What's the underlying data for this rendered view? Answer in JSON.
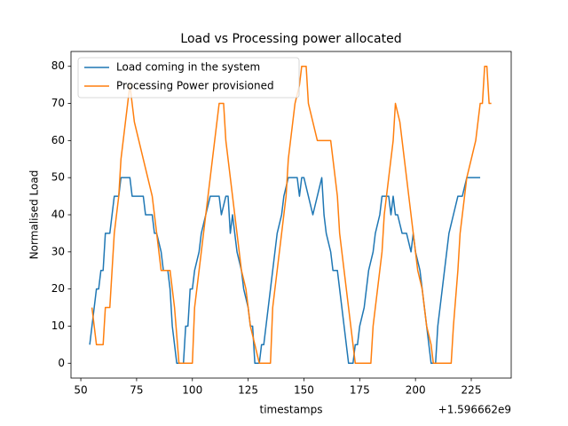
{
  "chart_data": {
    "type": "line",
    "title": "Load vs Processing power allocated",
    "x_label": "timestamps",
    "y_label": "Normalised Load",
    "x_offset_label": "+1.596662e9",
    "xlim": [
      45.6,
      242.9
    ],
    "ylim": [
      -4,
      84
    ],
    "xticks": [
      50,
      75,
      100,
      125,
      150,
      175,
      200,
      225
    ],
    "yticks": [
      0,
      10,
      20,
      30,
      40,
      50,
      60,
      70,
      80
    ],
    "legend": "upper left",
    "series": [
      {
        "name": "Load coming in the system",
        "color": "#1f77b4",
        "x": [
          54,
          56,
          57,
          58,
          59,
          60,
          61,
          63,
          64,
          65,
          67,
          68,
          72,
          73,
          78,
          79,
          82,
          83,
          84,
          86,
          87,
          89,
          90,
          91,
          92,
          93,
          96,
          97,
          98,
          99,
          100,
          101,
          103,
          104,
          106,
          108,
          112,
          113,
          115,
          116,
          117,
          118,
          119,
          120,
          122,
          123,
          125,
          126,
          127,
          128,
          130,
          131,
          132,
          133,
          135,
          137,
          138,
          140,
          141,
          143,
          147,
          148,
          149,
          150,
          152,
          154,
          156,
          158,
          159,
          160,
          162,
          163,
          165,
          166,
          167,
          168,
          169,
          170,
          172,
          173,
          174,
          175,
          177,
          178,
          179,
          181,
          182,
          184,
          185,
          188,
          189,
          190,
          191,
          192,
          194,
          196,
          198,
          199,
          200,
          202,
          203,
          205,
          207,
          209,
          210,
          211,
          213,
          215,
          217,
          219,
          221,
          223,
          229
        ],
        "values": [
          5,
          15,
          20,
          20,
          25,
          25,
          35,
          35,
          40,
          45,
          45,
          50,
          50,
          45,
          45,
          40,
          40,
          35,
          35,
          30,
          25,
          25,
          20,
          10,
          5,
          0,
          0,
          10,
          10,
          20,
          20,
          25,
          30,
          35,
          40,
          45,
          45,
          40,
          45,
          45,
          35,
          40,
          35,
          30,
          25,
          20,
          15,
          10,
          10,
          0,
          0,
          5,
          5,
          10,
          20,
          30,
          35,
          40,
          45,
          50,
          50,
          45,
          50,
          50,
          45,
          40,
          45,
          50,
          40,
          35,
          30,
          25,
          25,
          20,
          15,
          10,
          5,
          0,
          0,
          5,
          5,
          10,
          15,
          20,
          25,
          30,
          35,
          40,
          45,
          45,
          40,
          45,
          40,
          40,
          35,
          35,
          30,
          35,
          30,
          25,
          20,
          10,
          0,
          0,
          10,
          15,
          25,
          35,
          40,
          45,
          45,
          50,
          50
        ]
      },
      {
        "name": "Processing Power provisioned",
        "color": "#ff7f0e",
        "x": [
          55,
          57,
          60,
          61,
          63,
          64,
          65,
          67,
          68,
          70,
          72,
          73,
          74,
          76,
          78,
          80,
          82,
          84,
          86,
          90,
          92,
          94,
          100,
          101,
          103,
          105,
          107,
          109,
          111,
          112,
          114,
          115,
          117,
          118,
          120,
          122,
          124,
          126,
          128,
          130,
          135,
          136,
          138,
          140,
          142,
          143,
          145,
          146,
          148,
          149,
          151,
          152,
          154,
          156,
          162,
          163,
          165,
          166,
          168,
          170,
          172,
          173,
          180,
          181,
          183,
          185,
          186,
          188,
          190,
          191,
          193,
          195,
          197,
          199,
          201,
          203,
          205,
          207,
          208,
          216,
          217,
          219,
          220,
          222,
          223,
          225,
          227,
          229,
          230,
          231,
          232,
          233,
          234
        ],
        "values": [
          15,
          5,
          5,
          15,
          15,
          25,
          35,
          45,
          55,
          65,
          75,
          70,
          65,
          60,
          55,
          50,
          45,
          35,
          25,
          25,
          15,
          0,
          0,
          15,
          25,
          35,
          45,
          55,
          65,
          70,
          70,
          60,
          50,
          45,
          35,
          25,
          20,
          10,
          5,
          0,
          0,
          15,
          25,
          35,
          45,
          55,
          65,
          70,
          75,
          80,
          80,
          70,
          65,
          60,
          60,
          55,
          45,
          35,
          25,
          15,
          5,
          0,
          0,
          10,
          20,
          30,
          40,
          50,
          60,
          70,
          65,
          55,
          45,
          35,
          25,
          20,
          10,
          5,
          0,
          0,
          10,
          25,
          35,
          45,
          50,
          55,
          60,
          70,
          70,
          80,
          80,
          70,
          70
        ]
      }
    ]
  }
}
